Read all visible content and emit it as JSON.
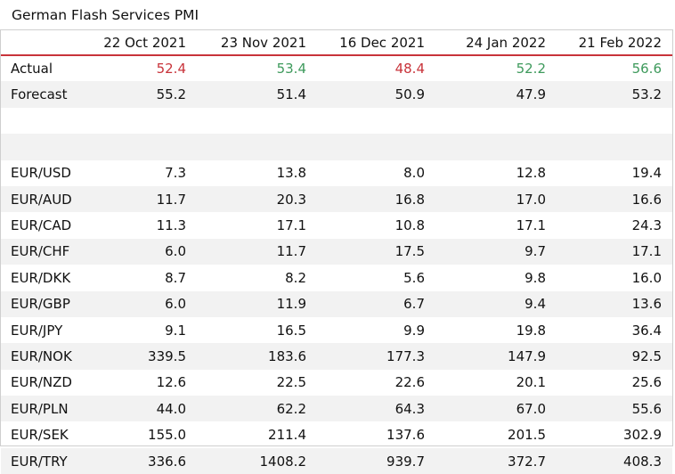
{
  "title": "German Flash Services PMI",
  "columns": [
    "",
    "22 Oct 2021",
    "23 Nov 2021",
    "16 Dec 2021",
    "24 Jan 2022",
    "21 Feb 2022"
  ],
  "colors": {
    "miss": "#c8333a",
    "beat": "#3e9a5c",
    "header_rule": "#c8333a",
    "stripe": "#f2f2f2"
  },
  "rows": [
    {
      "label": "Actual",
      "values": [
        "52.4",
        "53.4",
        "48.4",
        "52.2",
        "56.6"
      ],
      "tones": [
        "red",
        "green",
        "red",
        "green",
        "green"
      ]
    },
    {
      "label": "Forecast",
      "values": [
        "55.2",
        "51.4",
        "50.9",
        "47.9",
        "53.2"
      ]
    },
    {
      "label": "",
      "values": [
        "",
        "",
        "",
        "",
        ""
      ]
    },
    {
      "label": "",
      "values": [
        "",
        "",
        "",
        "",
        ""
      ]
    },
    {
      "label": "EUR/USD",
      "values": [
        "7.3",
        "13.8",
        "8.0",
        "12.8",
        "19.4"
      ]
    },
    {
      "label": "EUR/AUD",
      "values": [
        "11.7",
        "20.3",
        "16.8",
        "17.0",
        "16.6"
      ]
    },
    {
      "label": "EUR/CAD",
      "values": [
        "11.3",
        "17.1",
        "10.8",
        "17.1",
        "24.3"
      ]
    },
    {
      "label": "EUR/CHF",
      "values": [
        "6.0",
        "11.7",
        "17.5",
        "9.7",
        "17.1"
      ]
    },
    {
      "label": "EUR/DKK",
      "values": [
        "8.7",
        "8.2",
        "5.6",
        "9.8",
        "16.0"
      ]
    },
    {
      "label": "EUR/GBP",
      "values": [
        "6.0",
        "11.9",
        "6.7",
        "9.4",
        "13.6"
      ]
    },
    {
      "label": "EUR/JPY",
      "values": [
        "9.1",
        "16.5",
        "9.9",
        "19.8",
        "36.4"
      ]
    },
    {
      "label": "EUR/NOK",
      "values": [
        "339.5",
        "183.6",
        "177.3",
        "147.9",
        "92.5"
      ]
    },
    {
      "label": "EUR/NZD",
      "values": [
        "12.6",
        "22.5",
        "22.6",
        "20.1",
        "25.6"
      ]
    },
    {
      "label": "EUR/PLN",
      "values": [
        "44.0",
        "62.2",
        "64.3",
        "67.0",
        "55.6"
      ]
    },
    {
      "label": "EUR/SEK",
      "values": [
        "155.0",
        "211.4",
        "137.6",
        "201.5",
        "302.9"
      ]
    },
    {
      "label": "EUR/TRY",
      "values": [
        "336.6",
        "1408.2",
        "939.7",
        "372.7",
        "408.3"
      ]
    }
  ]
}
